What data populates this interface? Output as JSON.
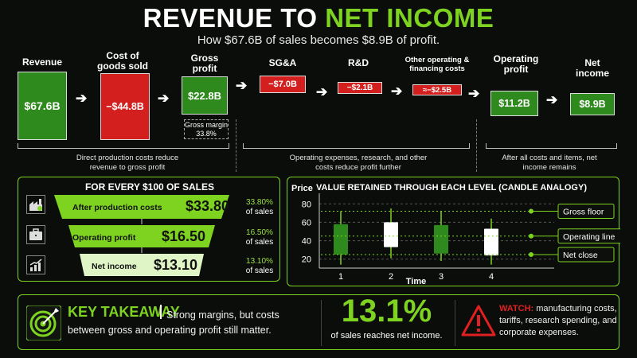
{
  "header": {
    "title_white": "REVENUE TO",
    "title_green": "NET INCOME",
    "subtitle": "How $67.6B of sales becomes $8.9B of profit."
  },
  "flow": {
    "revenue_label": "Revenue",
    "revenue_value": "$67.6B",
    "cogs_label": "Cost of goods sold",
    "cogs_value": "−$44.8B",
    "gross_label": "Gross profit",
    "gross_value": "$22.8B",
    "gross_margin_label": "Gross margin",
    "gross_margin_value": "33.8%",
    "sga_label": "SG&A",
    "sga_value": "−$7.0B",
    "rd_label": "R&D",
    "rd_value": "−$2.1B",
    "other_label": "Other operating & financing costs",
    "other_value": "≈−$2.5B",
    "operating_label": "Operating profit",
    "operating_value": "$11.2B",
    "net_label": "Net income",
    "net_value": "$8.9B",
    "note1": "Direct production costs reduce revenue to gross profit",
    "note2": "Operating expenses, research, and other costs reduce profit further",
    "note3": "After all costs and items, net income remains"
  },
  "per100": {
    "title": "FOR EVERY $100 OF SALES",
    "icons": [
      "factory-icon",
      "briefcase-icon",
      "growth-chart-icon"
    ],
    "rows": [
      {
        "label": "After production costs",
        "value": "$33.80",
        "pct": "33.80%",
        "suffix": "of sales",
        "fraction": 0.338
      },
      {
        "label": "Operating profit",
        "value": "$16.50",
        "pct": "16.50%",
        "suffix": "of sales",
        "fraction": 0.165
      },
      {
        "label": "Net income",
        "value": "$13.10",
        "pct": "13.10%",
        "suffix": "of sales",
        "fraction": 0.131
      }
    ]
  },
  "chart_data": {
    "type": "candlestick",
    "title": "VALUE RETAINED THROUGH EACH LEVEL (CANDLE ANALOGY)",
    "xlabel": "Time",
    "ylabel": "Price",
    "ylim": [
      12,
      88
    ],
    "yticks": [
      20,
      40,
      60,
      80
    ],
    "xticks": [
      1,
      2,
      3,
      4
    ],
    "grid": true,
    "candles": [
      {
        "x": 1,
        "low": 14,
        "open": 25,
        "close": 58,
        "high": 72,
        "color": "#2f8a1e"
      },
      {
        "x": 2,
        "low": 21,
        "open": 33,
        "close": 60,
        "high": 75,
        "color": "#ffffff"
      },
      {
        "x": 3,
        "low": 18,
        "open": 26,
        "close": 57,
        "high": 72,
        "color": "#2f8a1e"
      },
      {
        "x": 4,
        "low": 14,
        "open": 24,
        "close": 53,
        "high": 64,
        "color": "#ffffff"
      }
    ],
    "reference_lines": [
      {
        "name": "Gross floor",
        "value": 72
      },
      {
        "name": "Operating line",
        "value": 45
      },
      {
        "name": "Net close",
        "value": 25
      }
    ],
    "colors": {
      "accent": "#7ed321",
      "bull": "#2f8a1e",
      "bear": "#ffffff"
    }
  },
  "takeaway": {
    "title": "KEY TAKEAWAY",
    "text": "Strong margins, but costs between gross and operating profit still matter.",
    "big_pct": "13.1%",
    "big_caption": "of sales reaches net income.",
    "watch_label": "WATCH:",
    "watch_text": "manufacturing costs, tariffs, research spending, and corporate expenses."
  }
}
